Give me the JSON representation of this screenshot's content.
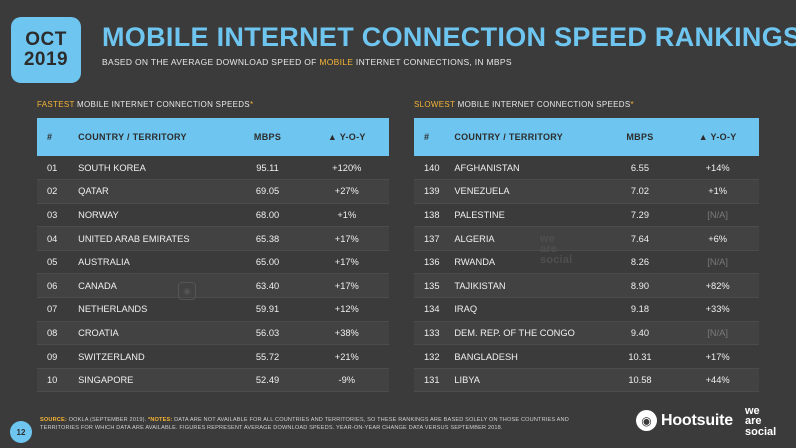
{
  "header": {
    "month": "OCT",
    "year": "2019",
    "title": "MOBILE INTERNET CONNECTION SPEED RANKINGS",
    "subtitle_pre": "BASED ON THE AVERAGE DOWNLOAD SPEED OF ",
    "subtitle_highlight": "MOBILE",
    "subtitle_post": " INTERNET CONNECTIONS, IN MBPS"
  },
  "fastest": {
    "label_accent": "FASTEST",
    "label_rest": " MOBILE INTERNET CONNECTION SPEEDS",
    "label_star": "*",
    "columns": [
      "#",
      "COUNTRY / TERRITORY",
      "MBPS",
      "▲ Y-O-Y"
    ],
    "rows": [
      {
        "rank": "01",
        "country": "SOUTH KOREA",
        "mbps": "95.11",
        "yoy": "+120%"
      },
      {
        "rank": "02",
        "country": "QATAR",
        "mbps": "69.05",
        "yoy": "+27%"
      },
      {
        "rank": "03",
        "country": "NORWAY",
        "mbps": "68.00",
        "yoy": "+1%"
      },
      {
        "rank": "04",
        "country": "UNITED ARAB EMIRATES",
        "mbps": "65.38",
        "yoy": "+17%"
      },
      {
        "rank": "05",
        "country": "AUSTRALIA",
        "mbps": "65.00",
        "yoy": "+17%"
      },
      {
        "rank": "06",
        "country": "CANADA",
        "mbps": "63.40",
        "yoy": "+17%"
      },
      {
        "rank": "07",
        "country": "NETHERLANDS",
        "mbps": "59.91",
        "yoy": "+12%"
      },
      {
        "rank": "08",
        "country": "CROATIA",
        "mbps": "56.03",
        "yoy": "+38%"
      },
      {
        "rank": "09",
        "country": "SWITZERLAND",
        "mbps": "55.72",
        "yoy": "+21%"
      },
      {
        "rank": "10",
        "country": "SINGAPORE",
        "mbps": "52.49",
        "yoy": "-9%"
      }
    ]
  },
  "slowest": {
    "label_accent": "SLOWEST",
    "label_rest": " MOBILE INTERNET CONNECTION SPEEDS",
    "label_star": "*",
    "columns": [
      "#",
      "COUNTRY / TERRITORY",
      "MBPS",
      "▲ Y-O-Y"
    ],
    "rows": [
      {
        "rank": "140",
        "country": "AFGHANISTAN",
        "mbps": "6.55",
        "yoy": "+14%"
      },
      {
        "rank": "139",
        "country": "VENEZUELA",
        "mbps": "7.02",
        "yoy": "+1%"
      },
      {
        "rank": "138",
        "country": "PALESTINE",
        "mbps": "7.29",
        "yoy": "[N/A]"
      },
      {
        "rank": "137",
        "country": "ALGERIA",
        "mbps": "7.64",
        "yoy": "+6%"
      },
      {
        "rank": "136",
        "country": "RWANDA",
        "mbps": "8.26",
        "yoy": "[N/A]"
      },
      {
        "rank": "135",
        "country": "TAJIKISTAN",
        "mbps": "8.90",
        "yoy": "+82%"
      },
      {
        "rank": "134",
        "country": "IRAQ",
        "mbps": "9.18",
        "yoy": "+33%"
      },
      {
        "rank": "133",
        "country": "DEM. REP. OF THE CONGO",
        "mbps": "9.40",
        "yoy": "[N/A]"
      },
      {
        "rank": "132",
        "country": "BANGLADESH",
        "mbps": "10.31",
        "yoy": "+17%"
      },
      {
        "rank": "131",
        "country": "LIBYA",
        "mbps": "10.58",
        "yoy": "+44%"
      }
    ]
  },
  "footer": {
    "page_number": "12",
    "source_label": "SOURCE:",
    "source_text": " OOKLA (SEPTEMBER 2019). ",
    "notes_label": "*NOTES:",
    "notes_text": " DATA ARE NOT AVAILABLE FOR ALL COUNTRIES AND TERRITORIES, SO THESE RANKINGS ARE BASED SOLELY ON THOSE COUNTRIES AND TERRITORIES FOR WHICH DATA ARE AVAILABLE. FIGURES REPRESENT AVERAGE DOWNLOAD SPEEDS. YEAR-ON-YEAR CHANGE DATA VERSUS SEPTEMBER 2018."
  },
  "brands": {
    "hootsuite": "Hootsuite",
    "owl_icon": "owl-icon",
    "was_line1": "we",
    "was_line2": "are",
    "was_line3": "social",
    "watermark_line1": "we",
    "watermark_line2": "are",
    "watermark_line3": "social"
  },
  "colors": {
    "background": "#3b3b3b",
    "accent_blue": "#6ec6f0",
    "accent_orange": "#f5b335"
  }
}
